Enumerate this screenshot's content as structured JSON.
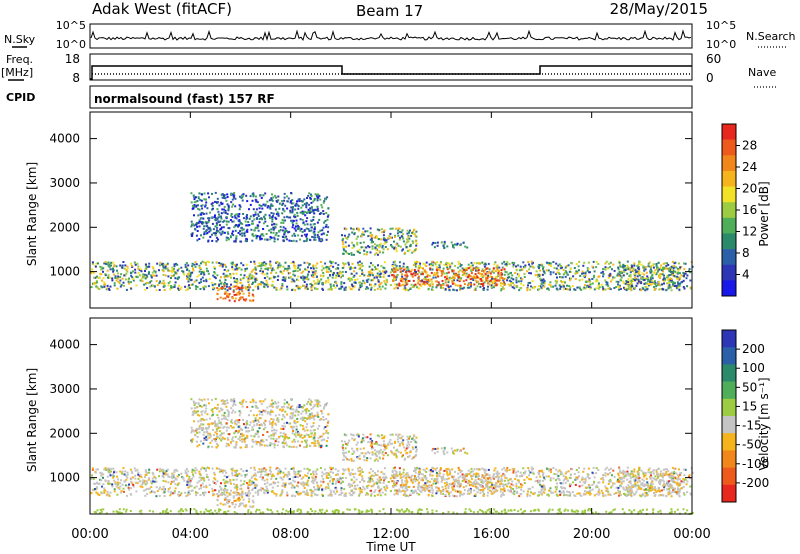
{
  "header": {
    "station": "Adak West (fitACF)",
    "beam": "Beam 17",
    "date": "28/May/2015"
  },
  "status_panels": {
    "nsky_label": "N.Sky",
    "nsearch_label": "N.Search",
    "freq_label": "Freq.",
    "freq_unit": "[MHz]",
    "nave_label": "Nave",
    "cpid_label": "CPID",
    "cpid_text": "normalsound (fast) 157 RF",
    "noise_left_ticks": [
      "10^5",
      "10^0"
    ],
    "noise_right_ticks": [
      "10^5",
      "10^0"
    ],
    "freq_ticks": [
      "18",
      "8"
    ],
    "nave_ticks": [
      "60",
      "0"
    ]
  },
  "chart_data": [
    {
      "type": "heatmap",
      "name_panel": "power",
      "ylabel": "Slant Range [km]",
      "y_ticks": [
        1000,
        2000,
        3000,
        4000
      ],
      "ylim": [
        180,
        4600
      ],
      "colorbar": {
        "label": "Power [dB]",
        "ticks": [
          "28",
          "24",
          "20",
          "16",
          "12",
          "8",
          "4"
        ],
        "colors": [
          "#e8281e",
          "#ee5a1c",
          "#f1861a",
          "#f5b41c",
          "#f2e227",
          "#9ccc41",
          "#4fae5a",
          "#2b8a6a",
          "#2b5fa8",
          "#2d37b6",
          "#1818e8"
        ]
      },
      "scatter_bands": [
        {
          "t_start": 0.0,
          "t_end": 24.0,
          "range_low": 600,
          "range_high": 1250,
          "level": "mid"
        },
        {
          "t_start": 4.0,
          "t_end": 9.5,
          "range_low": 1700,
          "range_high": 2800,
          "level": "low"
        },
        {
          "t_start": 5.0,
          "t_end": 6.5,
          "range_low": 350,
          "range_high": 700,
          "level": "high"
        },
        {
          "t_start": 10.0,
          "t_end": 13.0,
          "range_low": 1400,
          "range_high": 2000,
          "level": "mid"
        },
        {
          "t_start": 12.0,
          "t_end": 16.5,
          "range_low": 700,
          "range_high": 1100,
          "level": "high"
        },
        {
          "t_start": 13.5,
          "t_end": 15.0,
          "range_low": 1550,
          "range_high": 1700,
          "level": "low"
        },
        {
          "t_start": 21.0,
          "t_end": 23.5,
          "range_low": 600,
          "range_high": 1150,
          "level": "mid"
        }
      ]
    },
    {
      "type": "heatmap",
      "name_panel": "velocity",
      "ylabel": "Slant Range [km]",
      "xlabel": "Time UT",
      "x_ticks": [
        "00:00",
        "04:00",
        "08:00",
        "12:00",
        "16:00",
        "20:00",
        "00:00"
      ],
      "y_ticks": [
        1000,
        2000,
        3000,
        4000
      ],
      "ylim": [
        180,
        4600
      ],
      "colorbar": {
        "label": "Velocity [m s⁻¹]",
        "ticks": [
          "200",
          "100",
          "50",
          "15",
          "-15",
          "-50",
          "-100",
          "-200"
        ],
        "colors": [
          "#2d37b6",
          "#2b5fa8",
          "#2b8a6a",
          "#4fae5a",
          "#9ccc41",
          "#c4c4c4",
          "#f5b41c",
          "#f1861a",
          "#ee5a1c",
          "#e8281e"
        ]
      }
    }
  ]
}
